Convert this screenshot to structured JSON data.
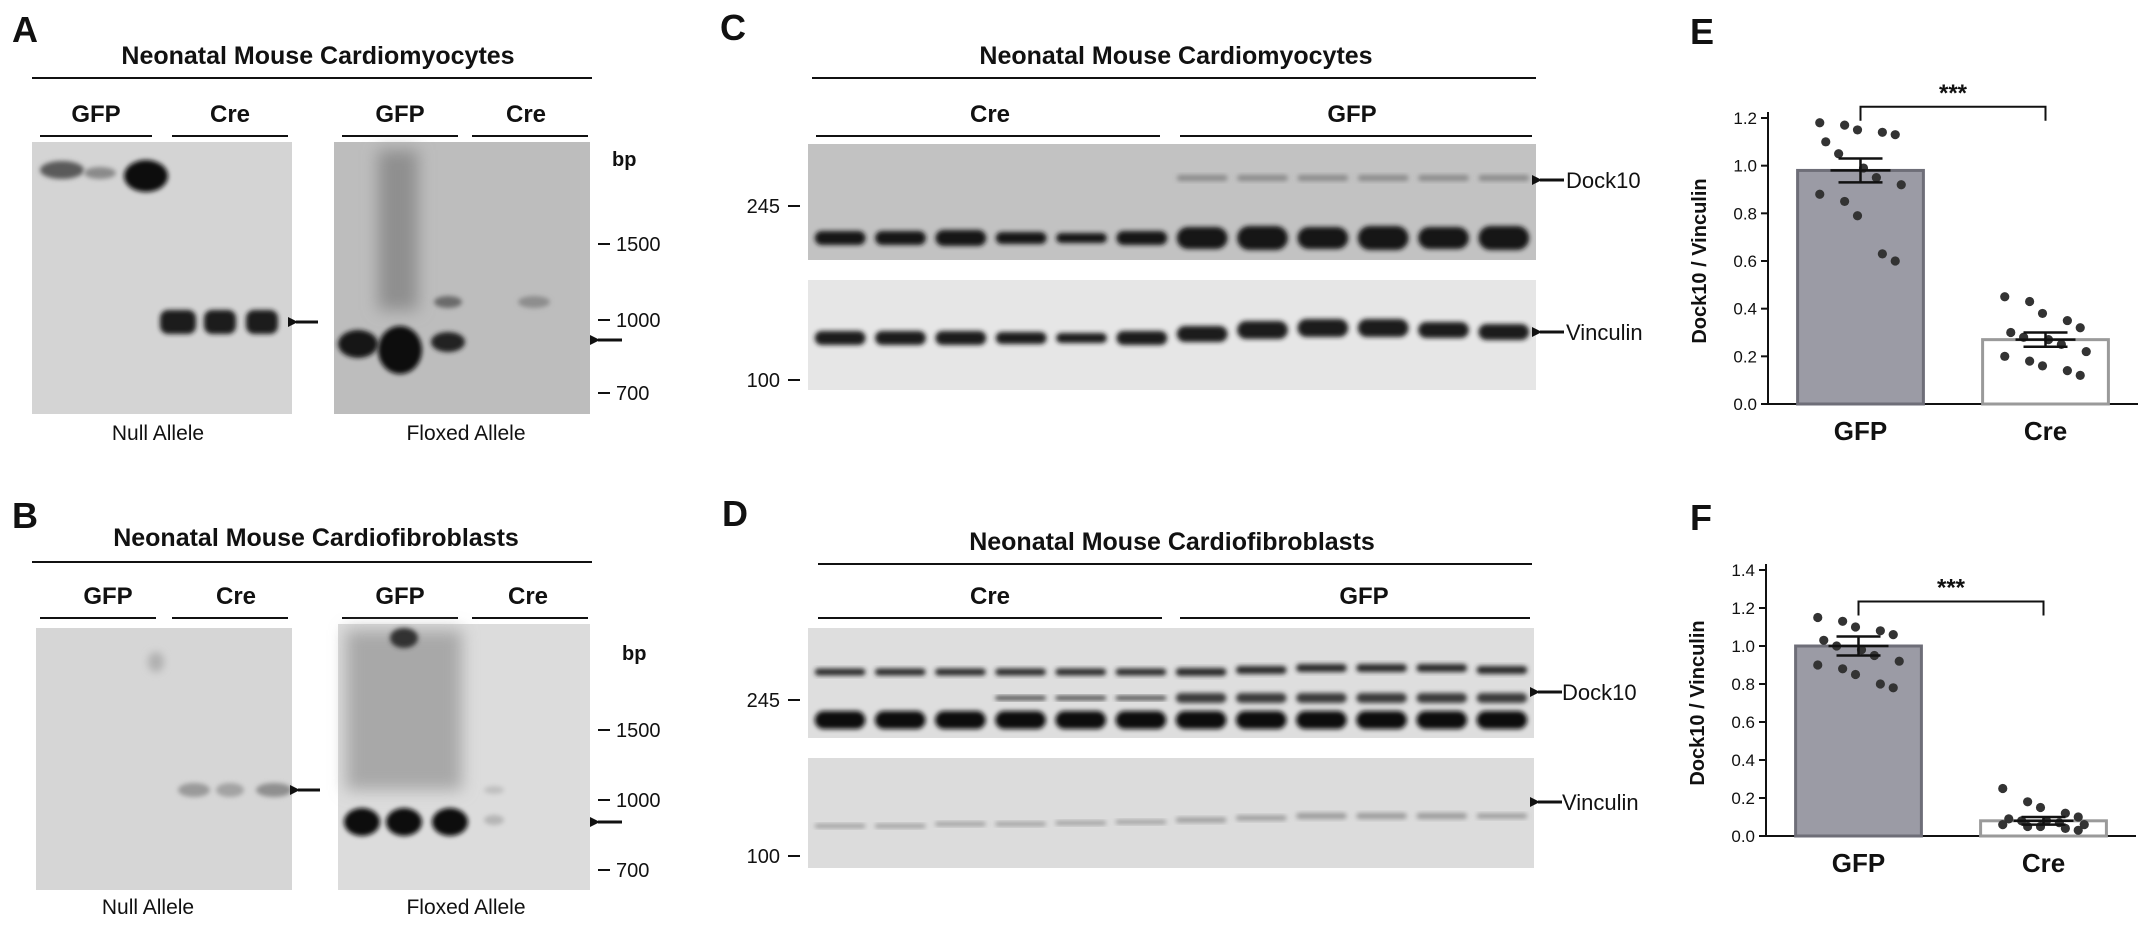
{
  "panels": {
    "A": {
      "label": "A",
      "title": "Neonatal Mouse Cardiomyocytes",
      "groups": [
        "GFP",
        "Cre",
        "GFP",
        "Cre"
      ],
      "captions": [
        "Null Allele",
        "Floxed Allele"
      ],
      "unit": "bp",
      "markers": [
        "1500",
        "1000",
        "700"
      ]
    },
    "B": {
      "label": "B",
      "title": "Neonatal Mouse Cardiofibroblasts",
      "groups": [
        "GFP",
        "Cre",
        "GFP",
        "Cre"
      ],
      "captions": [
        "Null Allele",
        "Floxed Allele"
      ],
      "unit": "bp",
      "markers": [
        "1500",
        "1000",
        "700"
      ]
    },
    "C": {
      "label": "C",
      "title": "Neonatal Mouse Cardiomyocytes",
      "groups": [
        "Cre",
        "GFP"
      ],
      "markers": [
        "245",
        "100"
      ],
      "bands": [
        "Dock10",
        "Vinculin"
      ]
    },
    "D": {
      "label": "D",
      "title": "Neonatal Mouse Cardiofibroblasts",
      "groups": [
        "Cre",
        "GFP"
      ],
      "markers": [
        "245",
        "100"
      ],
      "bands": [
        "Dock10",
        "Vinculin"
      ]
    },
    "E": {
      "label": "E"
    },
    "F": {
      "label": "F"
    }
  },
  "chart_data": [
    {
      "panel": "E",
      "type": "bar",
      "categories": [
        "GFP",
        "Cre"
      ],
      "values": [
        0.98,
        0.27
      ],
      "sem": [
        0.05,
        0.03
      ],
      "points": [
        [
          1.18,
          1.17,
          1.15,
          1.14,
          1.13,
          1.1,
          1.05,
          0.99,
          0.95,
          0.92,
          0.88,
          0.85,
          0.79,
          0.63,
          0.6
        ],
        [
          0.45,
          0.43,
          0.38,
          0.35,
          0.32,
          0.3,
          0.28,
          0.27,
          0.25,
          0.22,
          0.2,
          0.18,
          0.16,
          0.14,
          0.12
        ]
      ],
      "bar_colors": [
        "#9b9ba5",
        "#ffffff"
      ],
      "xlabel": "",
      "ylabel": "Dock10 / Vinculin",
      "ylim": [
        0,
        1.2
      ],
      "yticks": [
        "0.0",
        "0.2",
        "0.4",
        "0.6",
        "0.8",
        "1.0",
        "1.2"
      ],
      "significance": "***",
      "grid": false
    },
    {
      "panel": "F",
      "type": "bar",
      "categories": [
        "GFP",
        "Cre"
      ],
      "values": [
        1.0,
        0.08
      ],
      "sem": [
        0.05,
        0.02
      ],
      "points": [
        [
          1.15,
          1.13,
          1.1,
          1.08,
          1.06,
          1.03,
          1.0,
          0.98,
          0.95,
          0.92,
          0.9,
          0.88,
          0.85,
          0.8,
          0.78
        ],
        [
          0.25,
          0.18,
          0.15,
          0.12,
          0.1,
          0.09,
          0.08,
          0.08,
          0.07,
          0.06,
          0.06,
          0.05,
          0.05,
          0.04,
          0.03
        ]
      ],
      "bar_colors": [
        "#9b9ba5",
        "#ffffff"
      ],
      "xlabel": "",
      "ylabel": "Dock10 / Vinculin",
      "ylim": [
        0,
        1.4
      ],
      "yticks": [
        "0.0",
        "0.2",
        "0.4",
        "0.6",
        "0.8",
        "1.0",
        "1.2",
        "1.4"
      ],
      "significance": "***",
      "grid": false
    }
  ]
}
